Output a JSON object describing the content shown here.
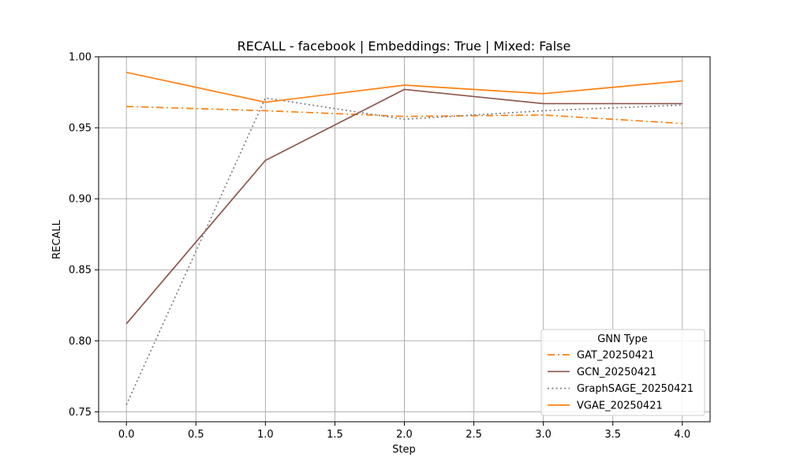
{
  "chart_data": {
    "type": "line",
    "title": "RECALL - facebook | Embeddings: True | Mixed: False",
    "xlabel": "Step",
    "ylabel": "RECALL",
    "x": [
      0,
      1,
      2,
      3,
      4
    ],
    "xlim": [
      -0.2,
      4.2
    ],
    "ylim": [
      0.743,
      1.0
    ],
    "xticks": [
      0.0,
      0.5,
      1.0,
      1.5,
      2.0,
      2.5,
      3.0,
      3.5,
      4.0
    ],
    "xtick_labels": [
      "0.0",
      "0.5",
      "1.0",
      "1.5",
      "2.0",
      "2.5",
      "3.0",
      "3.5",
      "4.0"
    ],
    "yticks": [
      0.75,
      0.8,
      0.85,
      0.9,
      0.95,
      1.0
    ],
    "ytick_labels": [
      "0.75",
      "0.80",
      "0.85",
      "0.90",
      "0.95",
      "1.00"
    ],
    "grid": true,
    "legend": {
      "title": "GNN Type",
      "placement": "lower-right"
    },
    "series": [
      {
        "name": "GAT_20250421",
        "values": [
          0.965,
          0.962,
          0.958,
          0.959,
          0.953
        ],
        "color": "#ff7f0e",
        "dash": "dashdot"
      },
      {
        "name": "GCN_20250421",
        "values": [
          0.812,
          0.927,
          0.977,
          0.967,
          0.967
        ],
        "color": "#8c564b",
        "dash": "solid"
      },
      {
        "name": "GraphSAGE_20250421",
        "values": [
          0.755,
          0.971,
          0.956,
          0.962,
          0.966
        ],
        "color": "#7f7f7f",
        "dash": "dotted"
      },
      {
        "name": "VGAE_20250421",
        "values": [
          0.989,
          0.968,
          0.98,
          0.974,
          0.983
        ],
        "color": "#ff7f0e",
        "dash": "solid"
      }
    ]
  }
}
